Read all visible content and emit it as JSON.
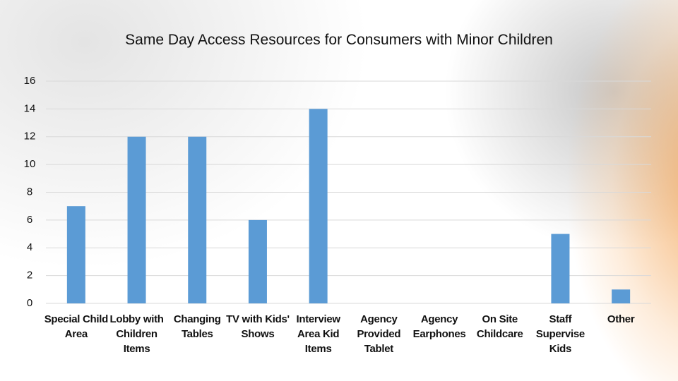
{
  "chart_data": {
    "type": "bar",
    "title": "Same Day Access Resources for Consumers with Minor Children",
    "categories": [
      "Special Child Area",
      "Lobby with Children Items",
      "Changing Tables",
      "TV with Kids' Shows",
      "Interview Area Kid Items",
      "Agency Provided Tablet",
      "Agency Earphones",
      "On Site Childcare",
      "Staff Supervise Kids",
      "Other"
    ],
    "values": [
      7,
      12,
      12,
      6,
      14,
      0,
      0,
      0,
      5,
      1
    ],
    "color": "#5b9bd5",
    "ylim": [
      0,
      16
    ],
    "yticks": [
      0,
      2,
      4,
      6,
      8,
      10,
      12,
      14,
      16
    ],
    "grid": true
  }
}
